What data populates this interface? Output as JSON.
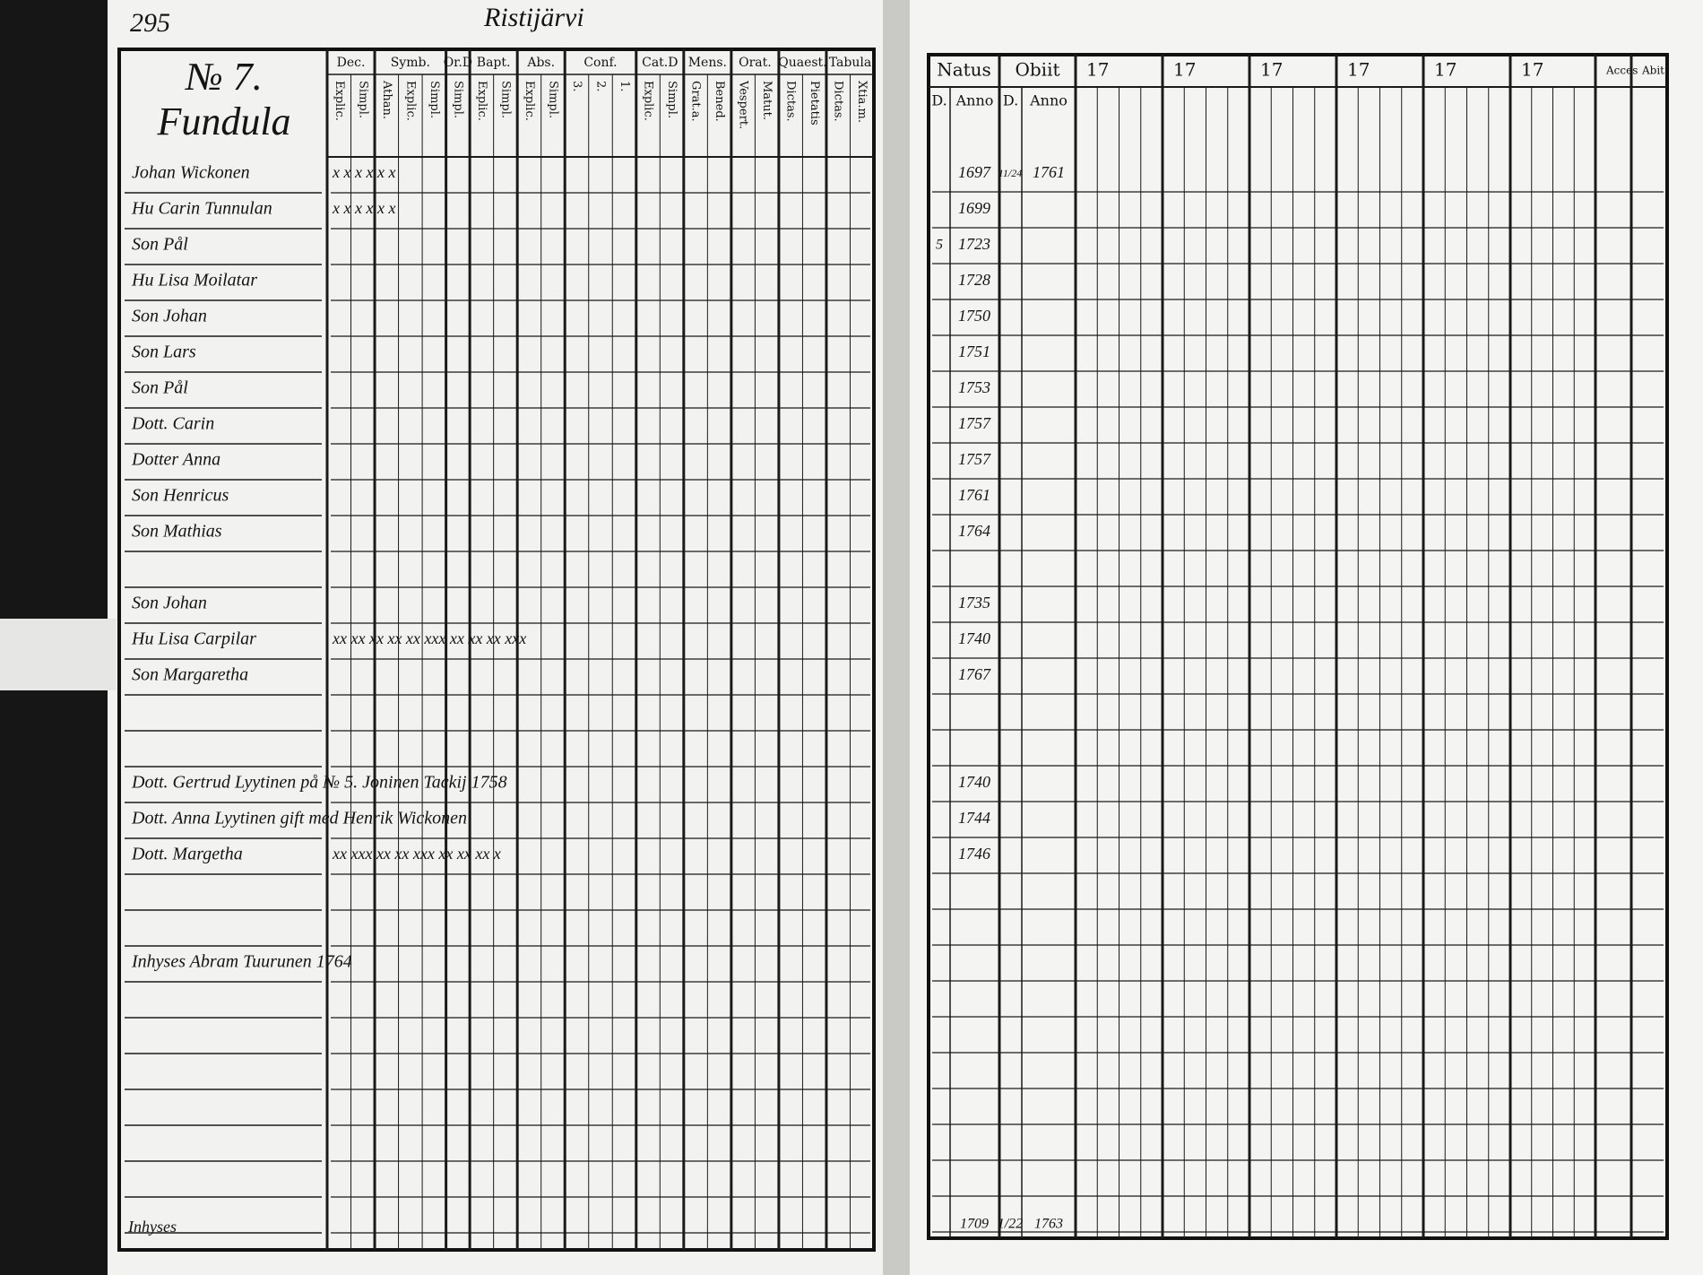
{
  "header": {
    "page_number": "295",
    "parish": "Ristijärvi"
  },
  "left_page": {
    "household_number": "№ 7.",
    "village": "Fundula",
    "columns": [
      {
        "label": "Dec.",
        "sub": [
          "Explic.",
          "Simpl."
        ]
      },
      {
        "label": "Symb.",
        "sub": [
          "Athan.",
          "Explic.",
          "Simpl."
        ]
      },
      {
        "label": "Or.D",
        "sub": [
          "Simpl."
        ]
      },
      {
        "label": "Bapt.",
        "sub": [
          "Explic.",
          "Simpl."
        ]
      },
      {
        "label": "Abs.",
        "sub": [
          "Explic.",
          "Simpl."
        ]
      },
      {
        "label": "Conf.",
        "sub": [
          "3.",
          "2.",
          "1."
        ]
      },
      {
        "label": "Cat.D",
        "sub": [
          "Explic.",
          "Simpl."
        ]
      },
      {
        "label": "Mens.",
        "sub": [
          "Grat.a.",
          "Bened."
        ]
      },
      {
        "label": "Orat.",
        "sub": [
          "Vespert.",
          "Matut."
        ]
      },
      {
        "label": "Quaest.",
        "sub": [
          "Dictas.",
          "Pietatis"
        ]
      },
      {
        "label": "Tabula",
        "sub": [
          "Dictas.",
          "Xtia.m."
        ]
      }
    ],
    "footer_note": "Inhyses"
  },
  "right_page": {
    "columns": [
      "Natus",
      "Obiit",
      "17",
      "17",
      "17",
      "17",
      "17",
      "17",
      "Acces",
      "Abit"
    ],
    "sub": [
      "D.",
      "Anno",
      "D.",
      "Anno"
    ],
    "footer": [
      "1709",
      "1/22",
      "1763"
    ]
  },
  "rows": [
    {
      "name": "Johan Wickonen",
      "marks": "x x  x x  x x",
      "natus": "1697",
      "obiit_day": "11/24",
      "obiit": "1761"
    },
    {
      "name": "Hu Carin Tunnulan",
      "marks": "x x  x x  x x",
      "natus": "1699"
    },
    {
      "name": "Son Pål",
      "natus_day": "5",
      "natus": "1723"
    },
    {
      "name": "Hu Lisa Moilatar",
      "natus": "1728"
    },
    {
      "name": "Son Johan",
      "natus": "1750"
    },
    {
      "name": "Son Lars",
      "natus": "1751"
    },
    {
      "name": "Son Pål",
      "natus": "1753"
    },
    {
      "name": "Dott. Carin",
      "natus": "1757"
    },
    {
      "name": "Dotter Anna",
      "natus": "1757"
    },
    {
      "name": "Son Henricus",
      "natus": "1761"
    },
    {
      "name": "Son Mathias",
      "natus": "1764"
    },
    {
      "name": "Son Johan",
      "natus": "1735"
    },
    {
      "name": "Hu Lisa Carpilar",
      "marks": "xx  xx  xx  xx  xx  xxx  xx  xx  xx  xxx",
      "natus": "1740"
    },
    {
      "name": "Son Margaretha",
      "natus": "1767"
    },
    {
      "name": "Dott. Gertrud Lyytinen på № 5. Joninen Tackij 1758",
      "natus": "1740"
    },
    {
      "name": "Dott. Anna Lyytinen gift med Henrik Wickonen",
      "natus": "1744"
    },
    {
      "name": "Dott. Margetha",
      "marks": "xx  xxx  xx  xx  xxx  xx  xx  xx  x",
      "natus": "1746"
    },
    {
      "name": "Inhyses Abram Tuurunen 1764"
    }
  ]
}
